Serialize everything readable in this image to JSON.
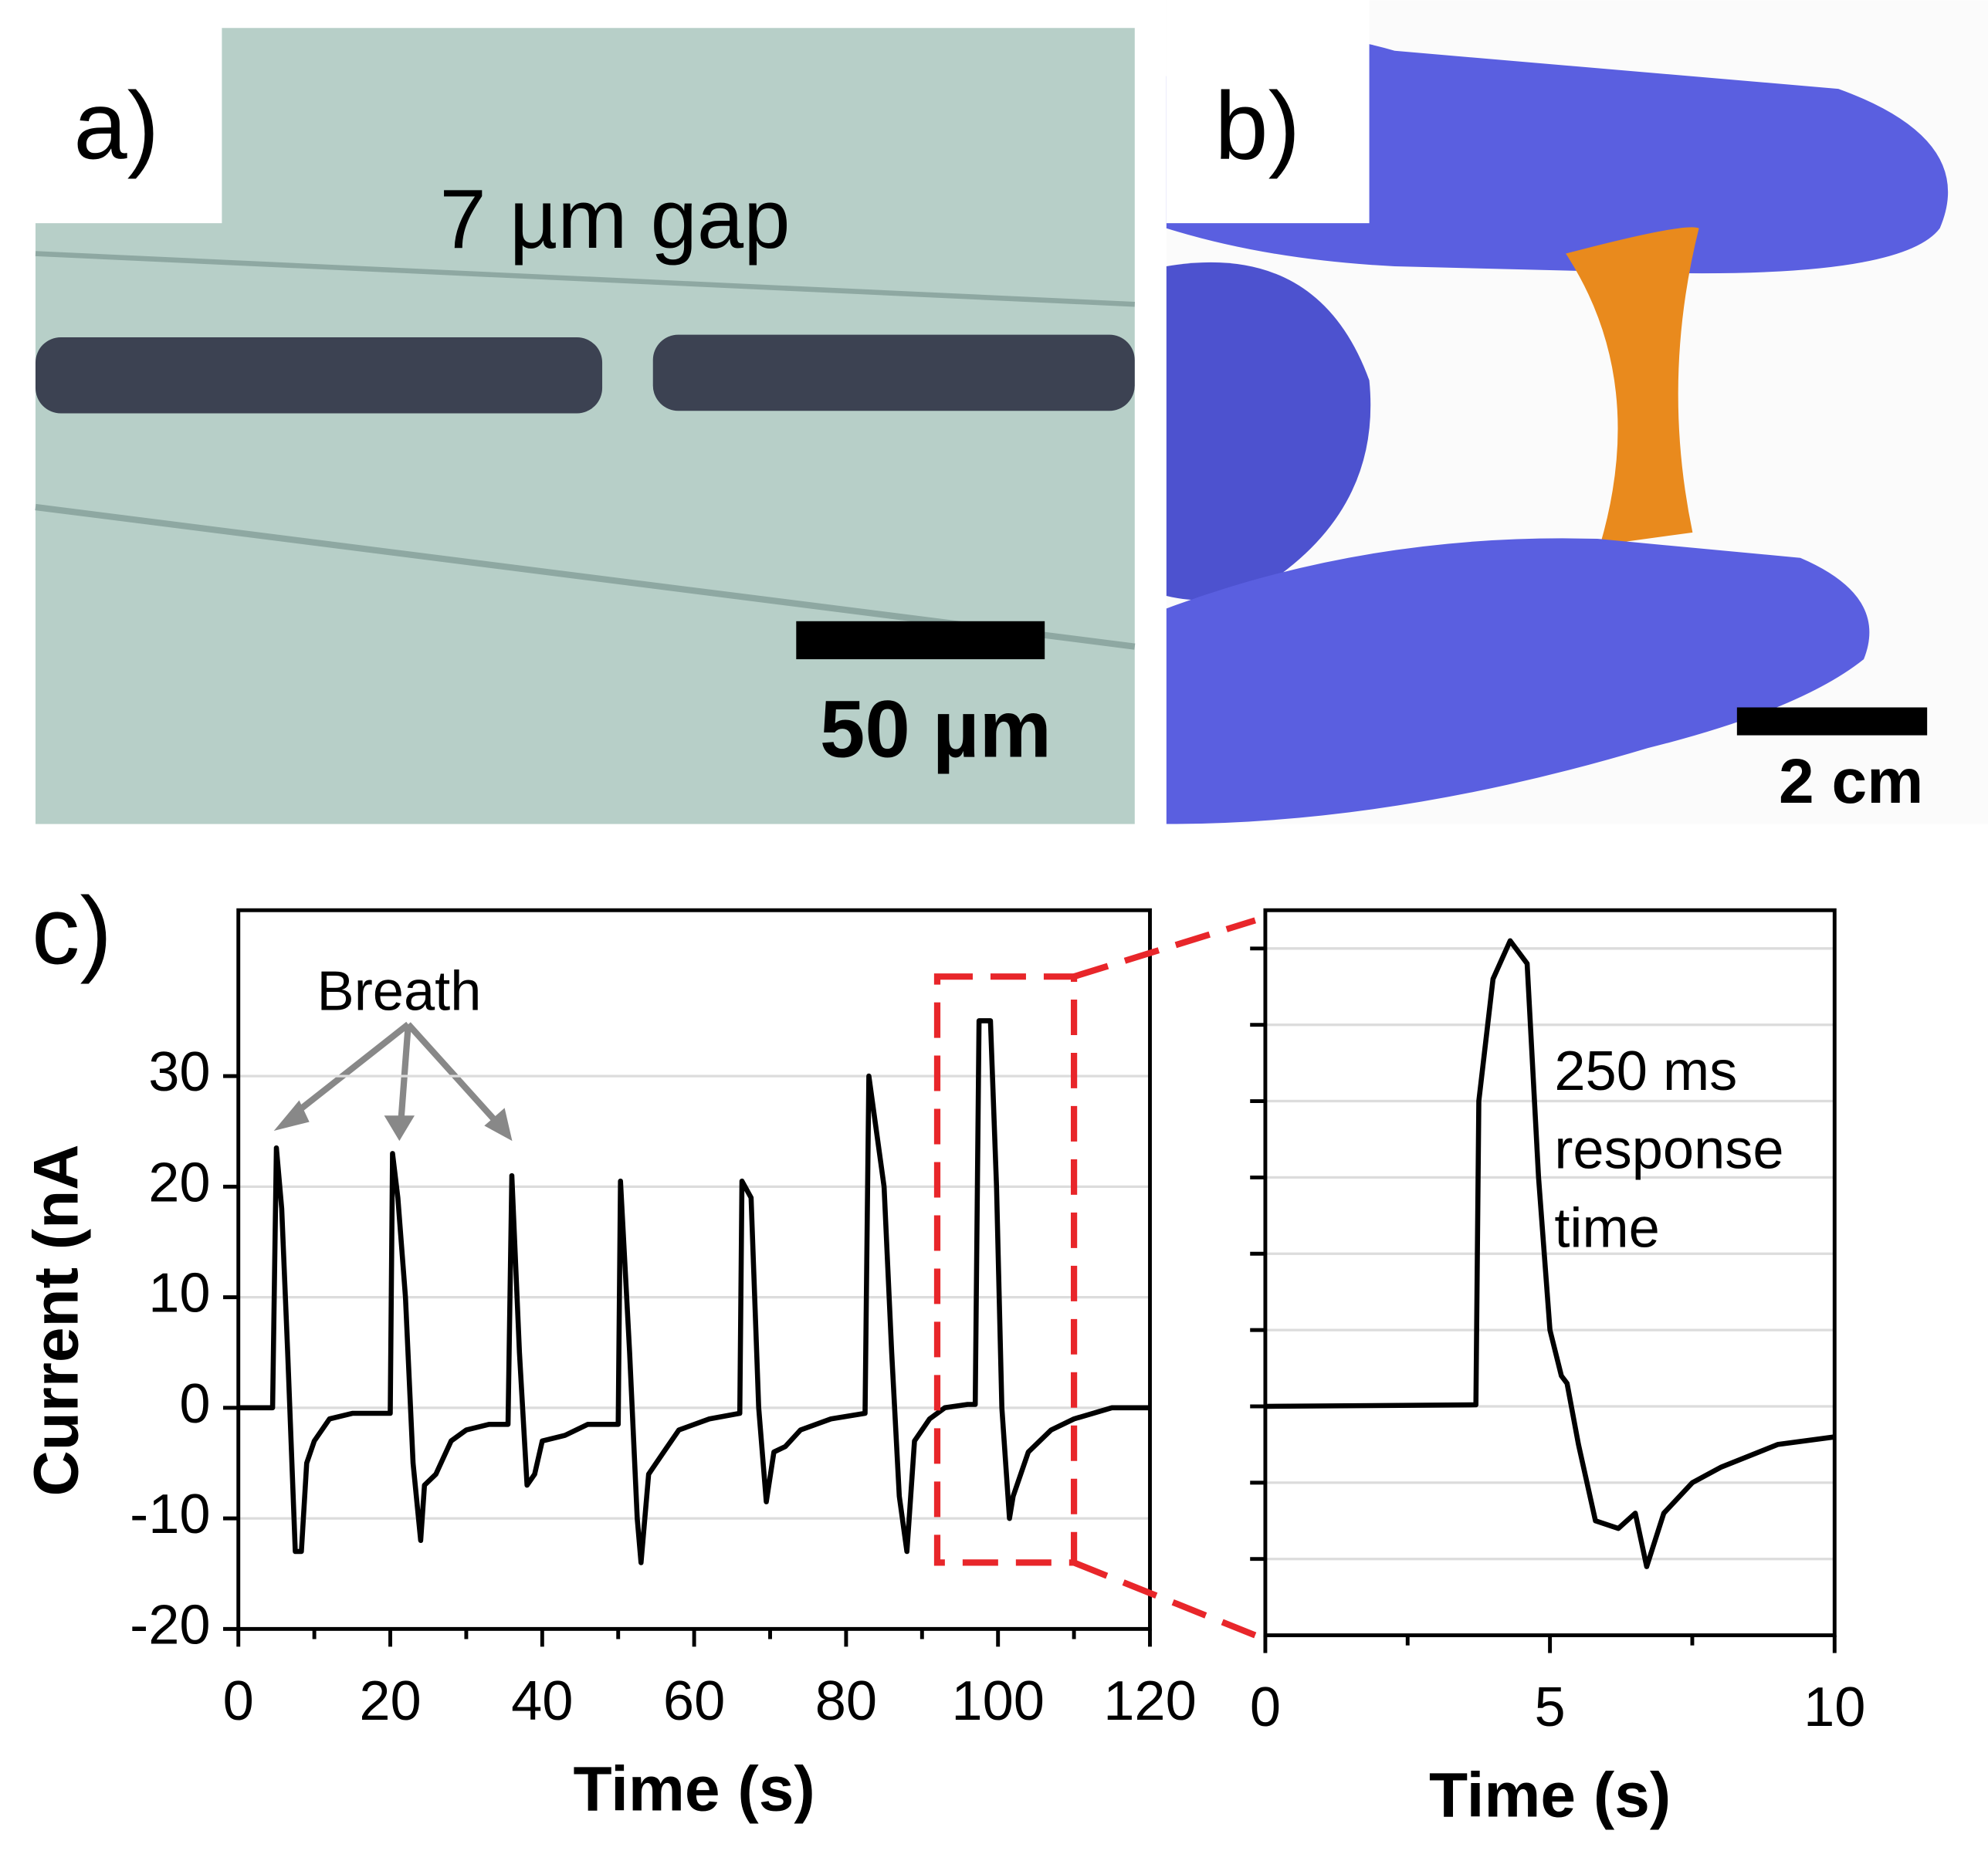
{
  "panels": {
    "a": {
      "label": "a)",
      "annotation": "7 µm gap",
      "scale_bar": "50 µm"
    },
    "b": {
      "label": "b)",
      "scale_bar": "2 cm"
    },
    "c": {
      "label": "c)"
    }
  },
  "chart_data": [
    {
      "type": "line",
      "xlabel": "Time (s)",
      "ylabel": "Current (nA",
      "annotation": "Breath",
      "color": "#000000",
      "grid": true,
      "xlim": [
        0,
        120
      ],
      "ylim": [
        -20,
        45
      ],
      "xticks": [
        0,
        20,
        40,
        60,
        80,
        100,
        120
      ],
      "yticks": [
        -20,
        -10,
        0,
        10,
        20,
        30
      ],
      "zoom_box": {
        "x": [
          92,
          110
        ],
        "y": [
          -14,
          39
        ]
      },
      "x": [
        0,
        4.5,
        5,
        5.7,
        6.5,
        7.5,
        8.3,
        9,
        10,
        12,
        15,
        20,
        20.3,
        21,
        22,
        23,
        24,
        24.5,
        26,
        28,
        30,
        33,
        35.5,
        36,
        37,
        38,
        39,
        40,
        43,
        46,
        50,
        50.3,
        51.5,
        52.5,
        53,
        54,
        56,
        58,
        62,
        66,
        66.3,
        67.5,
        68.5,
        69.5,
        70.5,
        72,
        74,
        78,
        82.5,
        83,
        84,
        85,
        86,
        87,
        88,
        89,
        91,
        93,
        96,
        97,
        97.5,
        99,
        99.8,
        100.5,
        101.5,
        102,
        104,
        107,
        110,
        115,
        120
      ],
      "values": [
        0,
        0,
        23.5,
        18,
        5,
        -13,
        -13,
        -5,
        -3,
        -1,
        -0.5,
        -0.5,
        23,
        19,
        10,
        -5,
        -12,
        -7,
        -6,
        -3,
        -2,
        -1.5,
        -1.5,
        21,
        5,
        -7,
        -6,
        -3,
        -2.5,
        -1.5,
        -1.5,
        20.5,
        5,
        -10,
        -14,
        -6,
        -4,
        -2,
        -1,
        -0.5,
        20.5,
        19,
        0,
        -8.5,
        -4,
        -3.5,
        -2,
        -1,
        -0.5,
        30,
        25,
        20,
        5,
        -8,
        -13,
        -3,
        -1,
        0,
        0.3,
        0.3,
        35,
        35,
        20,
        0,
        -10,
        -8,
        -4,
        -2,
        -1,
        0,
        0
      ]
    },
    {
      "type": "line",
      "xlabel": "Time (s)",
      "annotation": [
        "250 ms",
        "response",
        "time"
      ],
      "color": "#000000",
      "xlim": [
        0,
        10
      ],
      "ylim": [
        -3,
        6.5
      ],
      "xticks": [
        0,
        5,
        10
      ],
      "x": [
        0,
        3.7,
        3.75,
        4.0,
        4.3,
        4.6,
        4.8,
        5.0,
        5.2,
        5.3,
        5.5,
        5.8,
        6.2,
        6.5,
        6.7,
        7,
        7.5,
        8,
        9,
        10
      ],
      "values": [
        0,
        0.02,
        4,
        5.6,
        6.1,
        5.8,
        3,
        1,
        0.4,
        0.3,
        -0.5,
        -1.5,
        -1.6,
        -1.4,
        -2.1,
        -1.4,
        -1,
        -0.8,
        -0.5,
        -0.4
      ]
    }
  ]
}
